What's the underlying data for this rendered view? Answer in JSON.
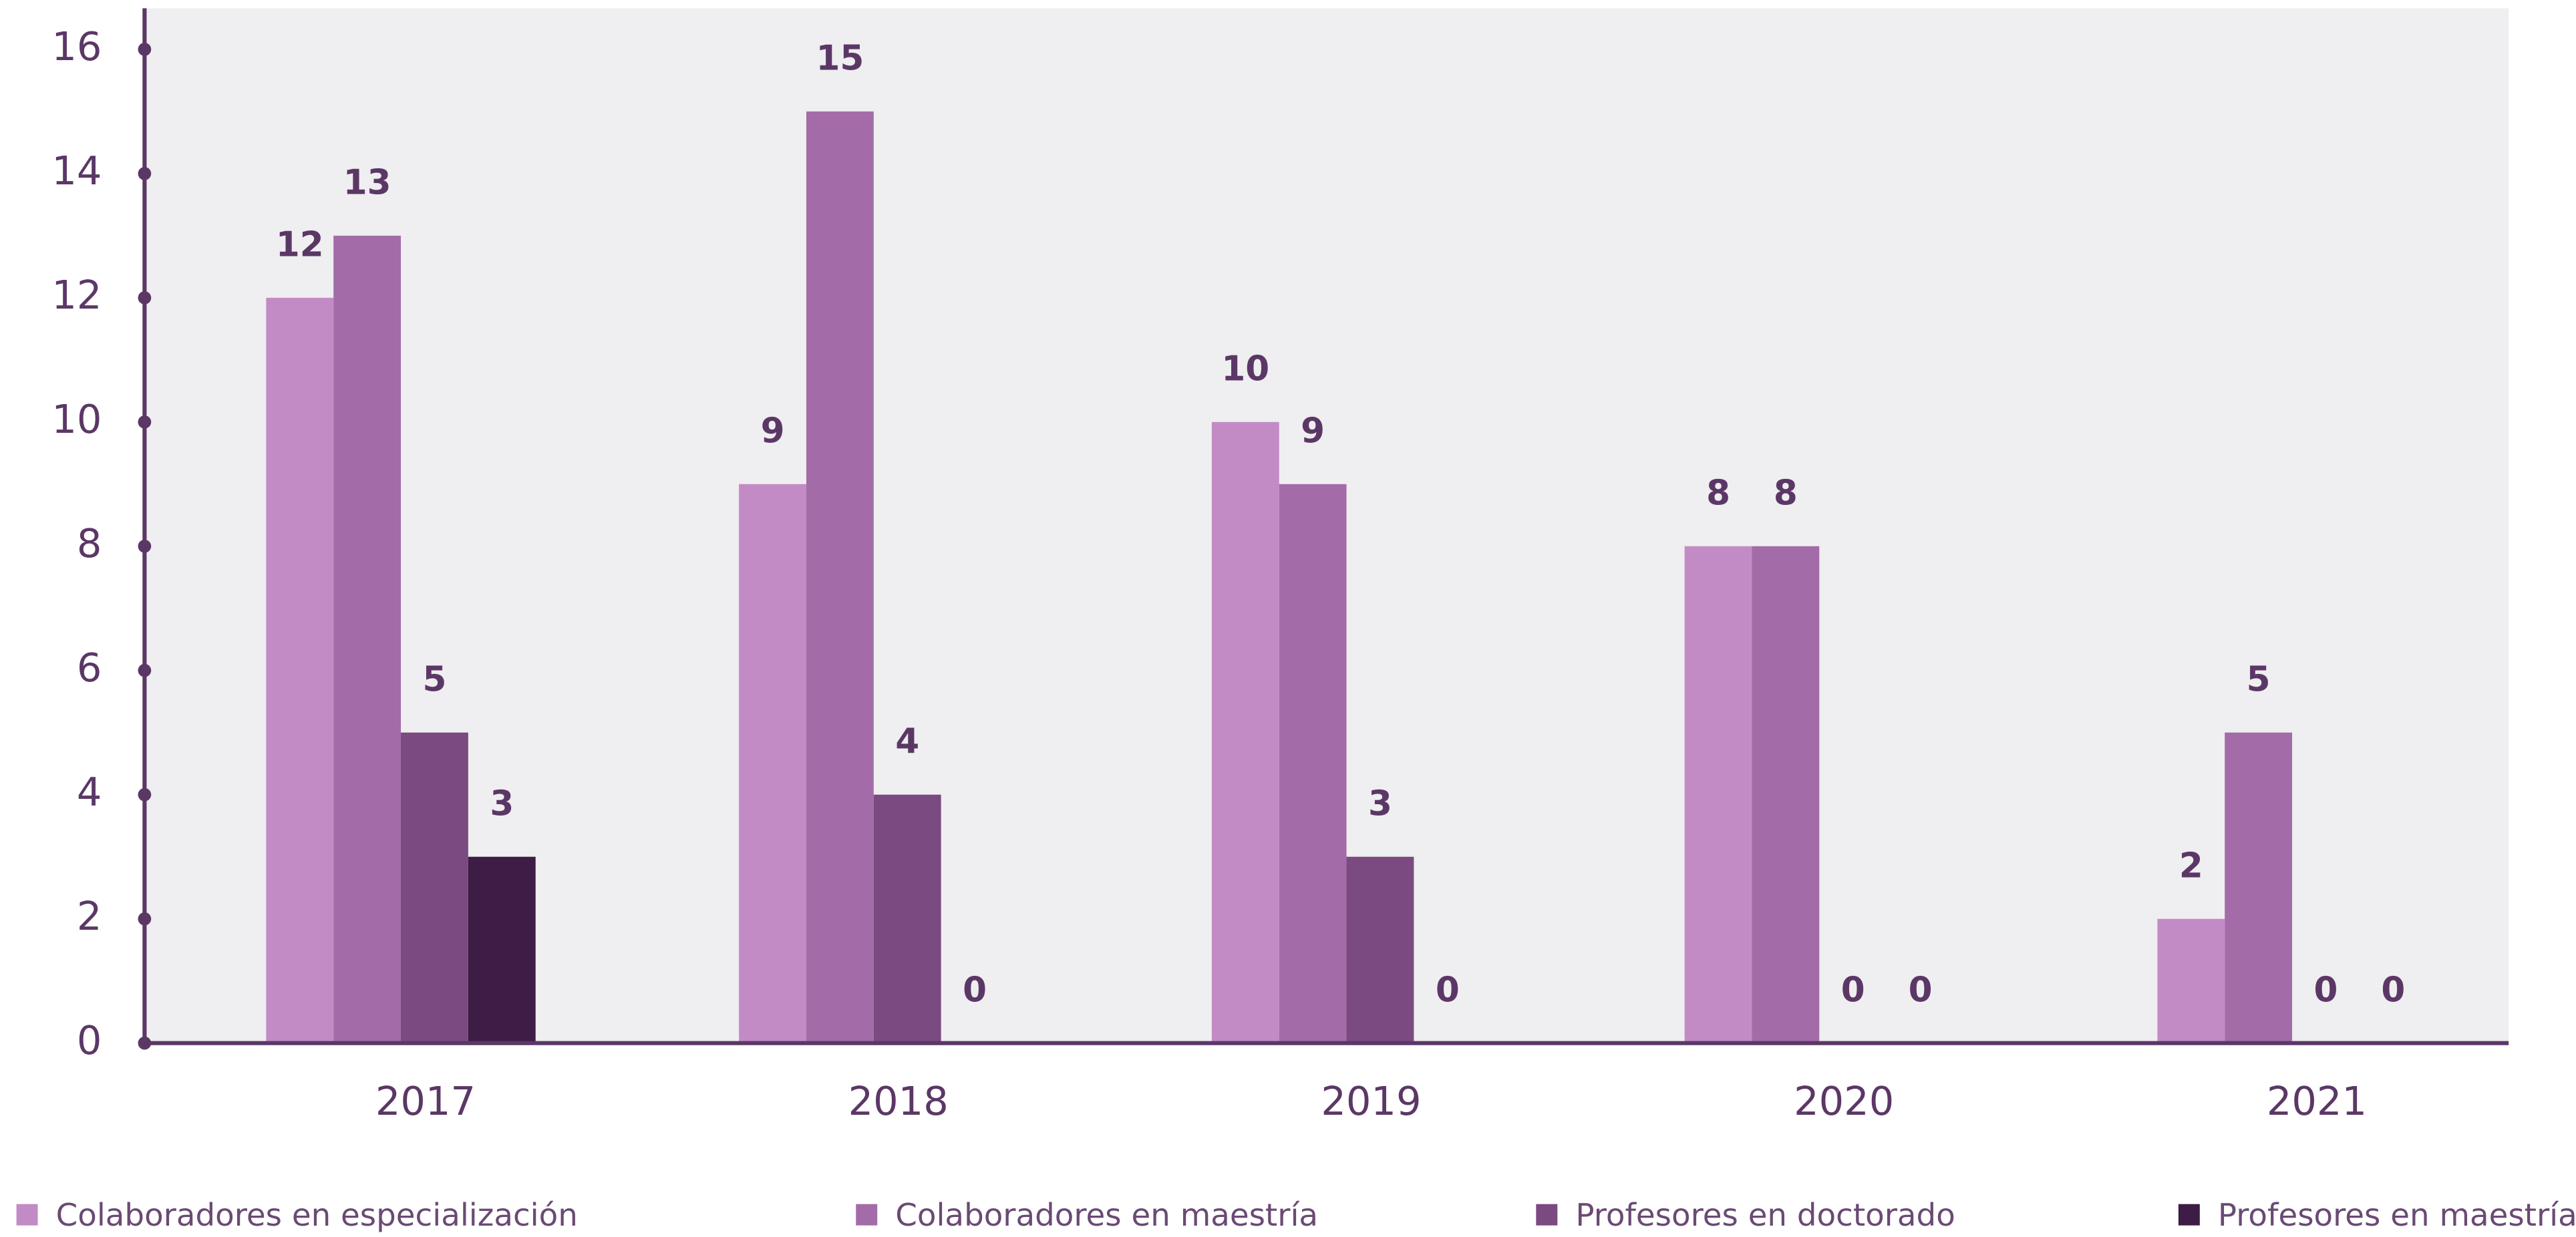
{
  "chart_data": {
    "type": "bar",
    "categories": [
      "2017",
      "2018",
      "2019",
      "2020",
      "2021"
    ],
    "series": [
      {
        "name": "Colaboradores en especialización",
        "color": "#c38bc5",
        "values": [
          12,
          9,
          10,
          8,
          2
        ]
      },
      {
        "name": "Colaboradores en maestría",
        "color": "#a36ca8",
        "values": [
          13,
          15,
          9,
          8,
          5
        ]
      },
      {
        "name": "Profesores en doctorado",
        "color": "#7a4a80",
        "values": [
          5,
          4,
          3,
          0,
          0
        ]
      },
      {
        "name": "Profesores en maestría",
        "color": "#3d1c45",
        "values": [
          3,
          0,
          0,
          0,
          0
        ]
      }
    ],
    "ylim": [
      0,
      16
    ],
    "yticks": [
      0,
      2,
      4,
      6,
      8,
      10,
      12,
      14,
      16
    ],
    "legend": "bottom"
  }
}
